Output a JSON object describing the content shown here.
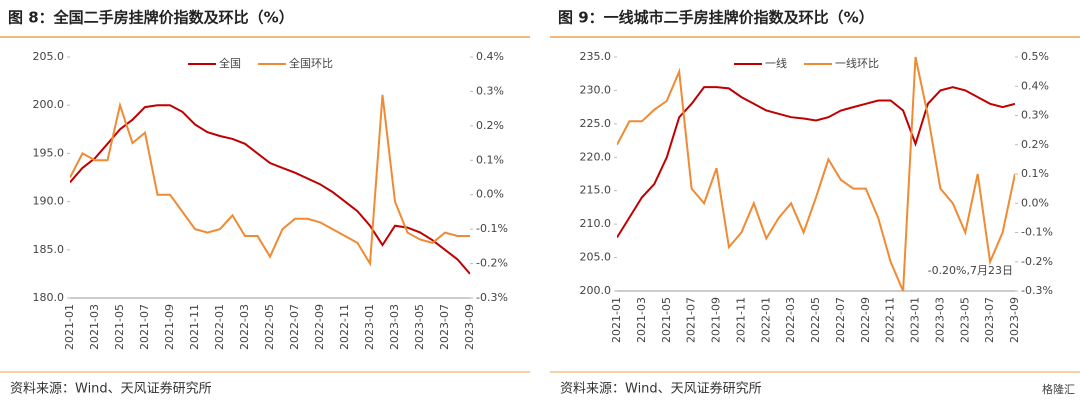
{
  "chart_data": [
    {
      "type": "line",
      "title": "图 8：全国二手房挂牌价指数及环比（%）",
      "source": "资料来源：Wind、天风证券研究所",
      "categories": [
        "2021-01",
        null,
        "2021-03",
        null,
        "2021-05",
        null,
        "2021-07",
        null,
        "2021-09",
        null,
        "2021-11",
        null,
        "2022-01",
        null,
        "2022-03",
        null,
        "2022-05",
        null,
        "2022-07",
        null,
        "2022-09",
        null,
        "2022-11",
        null,
        "2023-01",
        null,
        "2023-03",
        null,
        "2023-05",
        null,
        "2023-07",
        null,
        "2023-09"
      ],
      "ylim": [
        180,
        205
      ],
      "yticks": [
        {
          "value": 180,
          "label": "180.0"
        },
        {
          "value": 185,
          "label": "185.0"
        },
        {
          "value": 190,
          "label": "190.0"
        },
        {
          "value": 195,
          "label": "195.0"
        },
        {
          "value": 200,
          "label": "200.0"
        },
        {
          "value": 205,
          "label": "205.0"
        }
      ],
      "y2lim": [
        -0.3,
        0.4
      ],
      "y2ticks": [
        {
          "value": -0.3,
          "label": "-0.3%"
        },
        {
          "value": -0.2,
          "label": "-0.2%"
        },
        {
          "value": -0.1,
          "label": "-0.1%"
        },
        {
          "value": 0,
          "label": "0.0%"
        },
        {
          "value": 0.1,
          "label": "0.1%"
        },
        {
          "value": 0.2,
          "label": "0.2%"
        },
        {
          "value": 0.3,
          "label": "0.3%"
        },
        {
          "value": 0.4,
          "label": "0.4%"
        }
      ],
      "legend": "top",
      "series": [
        {
          "name": "全国",
          "color": "#c00000",
          "values": [
            192,
            193.5,
            194.5,
            196,
            197.5,
            198.5,
            199.8,
            200,
            200,
            199.3,
            198,
            197.2,
            196.8,
            196.5,
            196,
            195,
            194,
            193.5,
            193,
            192.4,
            191.8,
            191,
            190,
            189,
            187.5,
            185.5,
            187.5,
            187.3,
            186.8,
            186,
            185,
            184,
            182.5
          ]
        },
        {
          "name": "全国环比",
          "color": "#f08a33",
          "axis": "y2",
          "values": [
            0.05,
            0.12,
            0.1,
            0.1,
            0.26,
            0.15,
            0.18,
            0.0,
            0.0,
            -0.05,
            -0.1,
            -0.11,
            -0.1,
            -0.06,
            -0.12,
            -0.12,
            -0.18,
            -0.1,
            -0.07,
            -0.07,
            -0.08,
            -0.1,
            -0.12,
            -0.14,
            -0.2,
            0.29,
            -0.02,
            -0.11,
            -0.13,
            -0.14,
            -0.11,
            -0.12,
            -0.12
          ]
        }
      ]
    },
    {
      "type": "line",
      "title": "图 9：一线城市二手房挂牌价指数及环比（%）",
      "source": "资料来源：Wind、天风证券研究所",
      "categories": [
        "2021-01",
        null,
        "2021-03",
        null,
        "2021-05",
        null,
        "2021-07",
        null,
        "2021-09",
        null,
        "2021-11",
        null,
        "2022-01",
        null,
        "2022-03",
        null,
        "2022-05",
        null,
        "2022-07",
        null,
        "2022-09",
        null,
        "2022-11",
        null,
        "2023-01",
        null,
        "2023-03",
        null,
        "2023-05",
        null,
        "2023-07",
        null,
        "2023-09"
      ],
      "ylim": [
        200,
        235
      ],
      "yticks": [
        {
          "value": 200,
          "label": "200.0"
        },
        {
          "value": 205,
          "label": "205.0"
        },
        {
          "value": 210,
          "label": "210.0"
        },
        {
          "value": 215,
          "label": "215.0"
        },
        {
          "value": 220,
          "label": "220.0"
        },
        {
          "value": 225,
          "label": "225.0"
        },
        {
          "value": 230,
          "label": "230.0"
        },
        {
          "value": 235,
          "label": "235.0"
        }
      ],
      "y2lim": [
        -0.3,
        0.5
      ],
      "y2ticks": [
        {
          "value": -0.3,
          "label": "-0.3%"
        },
        {
          "value": -0.2,
          "label": "-0.2%"
        },
        {
          "value": -0.1,
          "label": "-0.1%"
        },
        {
          "value": 0,
          "label": "0.0%"
        },
        {
          "value": 0.1,
          "label": "0.1%"
        },
        {
          "value": 0.2,
          "label": "0.2%"
        },
        {
          "value": 0.3,
          "label": "0.3%"
        },
        {
          "value": 0.4,
          "label": "0.4%"
        },
        {
          "value": 0.5,
          "label": "0.5%"
        }
      ],
      "legend": "top",
      "annotation": "-0.20%,7月23日",
      "series": [
        {
          "name": "一线",
          "color": "#c00000",
          "values": [
            208,
            211,
            214,
            216,
            220,
            226,
            228,
            230.5,
            230.5,
            230.3,
            229,
            228,
            227,
            226.5,
            226,
            225.8,
            225.5,
            226,
            227,
            227.5,
            228,
            228.5,
            228.5,
            227,
            222,
            228,
            230,
            230.5,
            230,
            229,
            228,
            227.5,
            228
          ]
        },
        {
          "name": "一线环比",
          "color": "#f08a33",
          "axis": "y2",
          "values": [
            0.2,
            0.28,
            0.28,
            0.32,
            0.35,
            0.45,
            0.05,
            0.0,
            0.12,
            -0.15,
            -0.1,
            0.0,
            -0.12,
            -0.05,
            0.0,
            -0.1,
            0.02,
            0.15,
            0.08,
            0.05,
            0.05,
            -0.05,
            -0.2,
            -0.3,
            0.5,
            0.3,
            0.05,
            0.0,
            -0.1,
            0.1,
            -0.2,
            -0.1,
            0.1
          ]
        }
      ]
    }
  ],
  "watermark": "格隆汇"
}
